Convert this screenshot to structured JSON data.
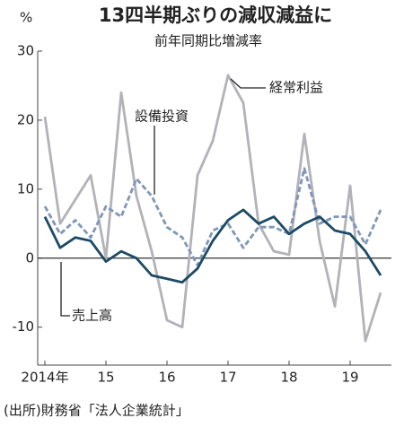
{
  "chart_data": {
    "type": "line",
    "title": "13四半期ぶりの減収減益に",
    "subtitle": "前年同期比増減率",
    "y_unit": "%",
    "source": "(出所)財務省「法人企業統計」",
    "categories": [
      "2014年",
      null,
      null,
      null,
      "15",
      null,
      null,
      null,
      "16",
      null,
      null,
      null,
      "17",
      null,
      null,
      null,
      "18",
      null,
      null,
      null,
      "19",
      null,
      null
    ],
    "series": [
      {
        "name": "経常利益",
        "color": "#b2b2b8",
        "dashed": false,
        "values": [
          20.5,
          5,
          8.5,
          12,
          0,
          24,
          9,
          1,
          -9,
          -10,
          12,
          17,
          26.5,
          22.5,
          5,
          1,
          0.5,
          18,
          2.5,
          -7,
          10.5,
          -12,
          -5
        ]
      },
      {
        "name": "設備投資",
        "color": "#7f97b8",
        "dashed": true,
        "values": [
          7.5,
          3.5,
          5.5,
          3,
          7.5,
          6,
          11.5,
          9,
          4.5,
          3,
          -1,
          4,
          5,
          1.5,
          4.5,
          4.5,
          3.5,
          13,
          5,
          6,
          6,
          2,
          7
        ]
      },
      {
        "name": "売上高",
        "color": "#1d4a66",
        "dashed": false,
        "values": [
          6,
          1.5,
          3,
          2.5,
          -0.5,
          1,
          0,
          -2.5,
          -3,
          -3.5,
          -1.5,
          2.5,
          5.5,
          7,
          5,
          6,
          3.5,
          5,
          6,
          4,
          3.5,
          1,
          -2.5
        ]
      }
    ],
    "ylim": [
      -15.5,
      30
    ],
    "yticks": [
      -10,
      0,
      10,
      20,
      30
    ],
    "grid": false
  }
}
